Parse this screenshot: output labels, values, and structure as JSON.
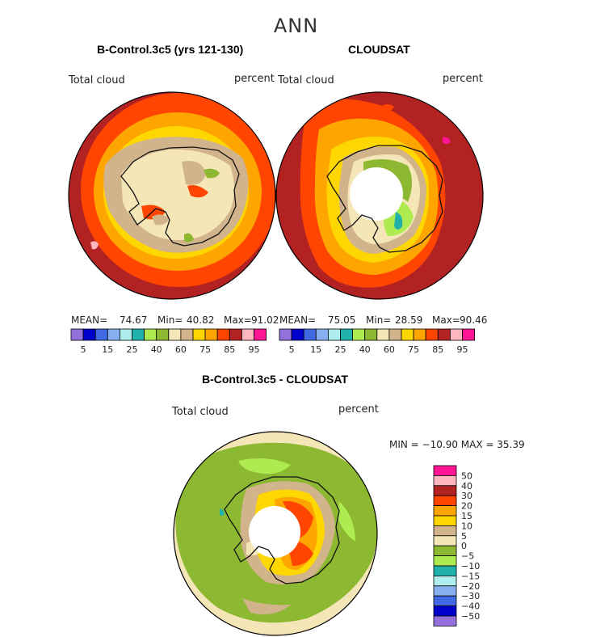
{
  "title": "ANN",
  "panels": [
    {
      "title": "B-Control.3c5 (yrs 121-130)",
      "variable_label": "Total cloud",
      "units_label": "percent",
      "mean_label": "MEAN=",
      "mean": "74.67",
      "min_label": "Min=",
      "min": "40.82",
      "max_label": "Max=",
      "max": "91.02"
    },
    {
      "title": "CLOUDSAT",
      "variable_label": "Total cloud",
      "units_label": "percent",
      "mean_label": "MEAN=",
      "mean": "75.05",
      "min_label": "Min=",
      "min": "28.59",
      "max_label": "Max=",
      "max": "90.46"
    }
  ],
  "diff_panel": {
    "title": "B-Control.3c5 - CLOUDSAT",
    "variable_label": "Total cloud",
    "units_label": "percent",
    "minmax_text": "MIN = −10.90 MAX =   35.39"
  },
  "chart_data": [
    {
      "type": "heatmap",
      "projection": "south-polar stereographic",
      "title": "B-Control.3c5 (yrs 121-130)",
      "variable": "Total cloud",
      "units": "percent",
      "stats": {
        "mean": 74.67,
        "min": 40.82,
        "max": 91.02
      },
      "colorbar": {
        "colors": [
          "#9370DB",
          "#0000CD",
          "#4169E1",
          "#87AEEF",
          "#AEEEEE",
          "#20B2AA",
          "#ADEB50",
          "#8DB832",
          "#F5E6B8",
          "#D2B48C",
          "#FFD700",
          "#FFA500",
          "#FF4500",
          "#B22222",
          "#FFB6C1",
          "#FF1493"
        ],
        "tick_labels": [
          "5",
          "15",
          "25",
          "40",
          "60",
          "75",
          "85",
          "95"
        ]
      }
    },
    {
      "type": "heatmap",
      "projection": "south-polar stereographic",
      "title": "CLOUDSAT",
      "variable": "Total cloud",
      "units": "percent",
      "stats": {
        "mean": 75.05,
        "min": 28.59,
        "max": 90.46
      },
      "colorbar": {
        "colors": [
          "#9370DB",
          "#0000CD",
          "#4169E1",
          "#87AEEF",
          "#AEEEEE",
          "#20B2AA",
          "#ADEB50",
          "#8DB832",
          "#F5E6B8",
          "#D2B48C",
          "#FFD700",
          "#FFA500",
          "#FF4500",
          "#B22222",
          "#FFB6C1",
          "#FF1493"
        ],
        "tick_labels": [
          "5",
          "15",
          "25",
          "40",
          "60",
          "75",
          "85",
          "95"
        ]
      }
    },
    {
      "type": "heatmap",
      "projection": "south-polar stereographic",
      "title": "B-Control.3c5 - CLOUDSAT",
      "variable": "Total cloud",
      "units": "percent",
      "stats": {
        "min": -10.9,
        "max": 35.39
      },
      "colorbar": {
        "colors": [
          "#FF1493",
          "#FFB6C1",
          "#B22222",
          "#FF4500",
          "#FFA500",
          "#FFD700",
          "#D2B48C",
          "#F5E6B8",
          "#8DB832",
          "#ADEB50",
          "#20B2AA",
          "#AEEEEE",
          "#87AEEF",
          "#4169E1",
          "#0000CD",
          "#9370DB"
        ],
        "tick_labels": [
          "50",
          "40",
          "30",
          "20",
          "15",
          "10",
          "5",
          "0",
          "−5",
          "−10",
          "−15",
          "−20",
          "−30",
          "−40",
          "−50"
        ]
      }
    }
  ]
}
